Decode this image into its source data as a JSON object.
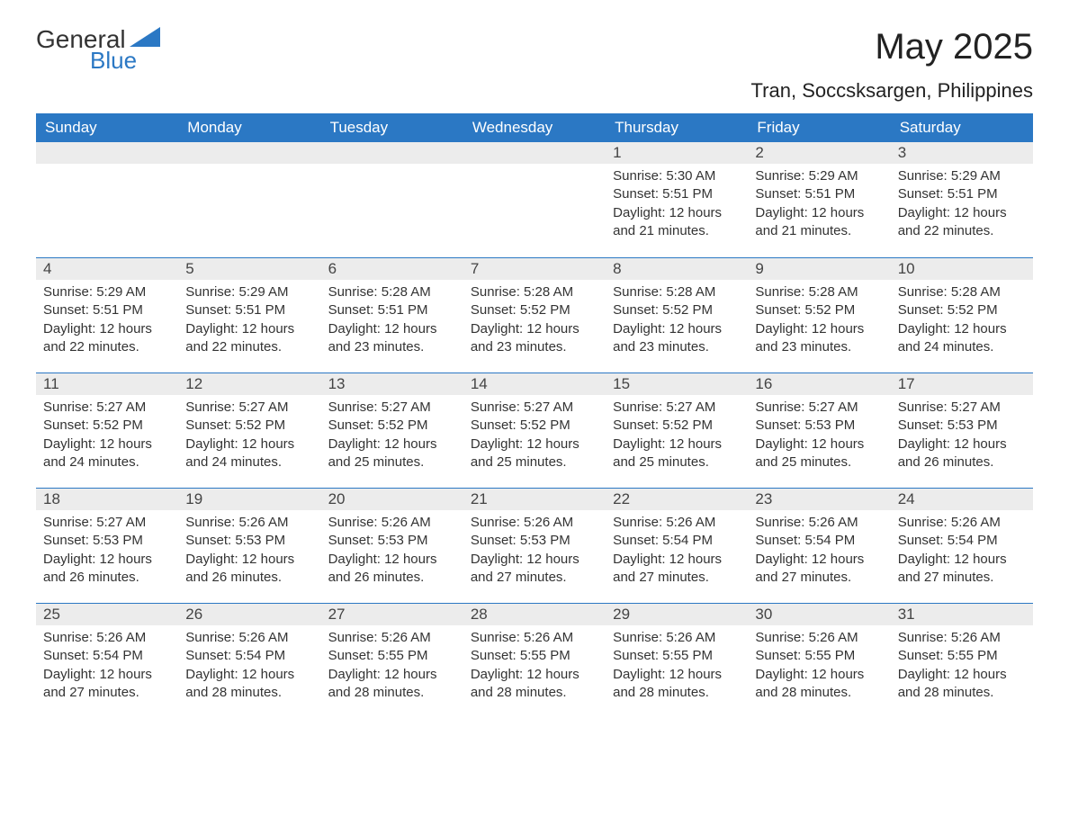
{
  "logo": {
    "line1": "General",
    "line2": "Blue",
    "triangle_color": "#2b78c4"
  },
  "title": "May 2025",
  "location": "Tran, Soccsksargen, Philippines",
  "colors": {
    "header_bg": "#2b78c4",
    "header_text": "#ffffff",
    "daynum_bg": "#ececec",
    "daynum_border": "#2b78c4",
    "text": "#333333",
    "background": "#ffffff"
  },
  "typography": {
    "title_fontsize": 40,
    "subtitle_fontsize": 22,
    "header_fontsize": 17,
    "daynum_fontsize": 17,
    "body_fontsize": 15
  },
  "weekdays": [
    "Sunday",
    "Monday",
    "Tuesday",
    "Wednesday",
    "Thursday",
    "Friday",
    "Saturday"
  ],
  "weeks": [
    [
      null,
      null,
      null,
      null,
      {
        "d": "1",
        "sr": "5:30 AM",
        "ss": "5:51 PM",
        "dl": "12 hours and 21 minutes."
      },
      {
        "d": "2",
        "sr": "5:29 AM",
        "ss": "5:51 PM",
        "dl": "12 hours and 21 minutes."
      },
      {
        "d": "3",
        "sr": "5:29 AM",
        "ss": "5:51 PM",
        "dl": "12 hours and 22 minutes."
      }
    ],
    [
      {
        "d": "4",
        "sr": "5:29 AM",
        "ss": "5:51 PM",
        "dl": "12 hours and 22 minutes."
      },
      {
        "d": "5",
        "sr": "5:29 AM",
        "ss": "5:51 PM",
        "dl": "12 hours and 22 minutes."
      },
      {
        "d": "6",
        "sr": "5:28 AM",
        "ss": "5:51 PM",
        "dl": "12 hours and 23 minutes."
      },
      {
        "d": "7",
        "sr": "5:28 AM",
        "ss": "5:52 PM",
        "dl": "12 hours and 23 minutes."
      },
      {
        "d": "8",
        "sr": "5:28 AM",
        "ss": "5:52 PM",
        "dl": "12 hours and 23 minutes."
      },
      {
        "d": "9",
        "sr": "5:28 AM",
        "ss": "5:52 PM",
        "dl": "12 hours and 23 minutes."
      },
      {
        "d": "10",
        "sr": "5:28 AM",
        "ss": "5:52 PM",
        "dl": "12 hours and 24 minutes."
      }
    ],
    [
      {
        "d": "11",
        "sr": "5:27 AM",
        "ss": "5:52 PM",
        "dl": "12 hours and 24 minutes."
      },
      {
        "d": "12",
        "sr": "5:27 AM",
        "ss": "5:52 PM",
        "dl": "12 hours and 24 minutes."
      },
      {
        "d": "13",
        "sr": "5:27 AM",
        "ss": "5:52 PM",
        "dl": "12 hours and 25 minutes."
      },
      {
        "d": "14",
        "sr": "5:27 AM",
        "ss": "5:52 PM",
        "dl": "12 hours and 25 minutes."
      },
      {
        "d": "15",
        "sr": "5:27 AM",
        "ss": "5:52 PM",
        "dl": "12 hours and 25 minutes."
      },
      {
        "d": "16",
        "sr": "5:27 AM",
        "ss": "5:53 PM",
        "dl": "12 hours and 25 minutes."
      },
      {
        "d": "17",
        "sr": "5:27 AM",
        "ss": "5:53 PM",
        "dl": "12 hours and 26 minutes."
      }
    ],
    [
      {
        "d": "18",
        "sr": "5:27 AM",
        "ss": "5:53 PM",
        "dl": "12 hours and 26 minutes."
      },
      {
        "d": "19",
        "sr": "5:26 AM",
        "ss": "5:53 PM",
        "dl": "12 hours and 26 minutes."
      },
      {
        "d": "20",
        "sr": "5:26 AM",
        "ss": "5:53 PM",
        "dl": "12 hours and 26 minutes."
      },
      {
        "d": "21",
        "sr": "5:26 AM",
        "ss": "5:53 PM",
        "dl": "12 hours and 27 minutes."
      },
      {
        "d": "22",
        "sr": "5:26 AM",
        "ss": "5:54 PM",
        "dl": "12 hours and 27 minutes."
      },
      {
        "d": "23",
        "sr": "5:26 AM",
        "ss": "5:54 PM",
        "dl": "12 hours and 27 minutes."
      },
      {
        "d": "24",
        "sr": "5:26 AM",
        "ss": "5:54 PM",
        "dl": "12 hours and 27 minutes."
      }
    ],
    [
      {
        "d": "25",
        "sr": "5:26 AM",
        "ss": "5:54 PM",
        "dl": "12 hours and 27 minutes."
      },
      {
        "d": "26",
        "sr": "5:26 AM",
        "ss": "5:54 PM",
        "dl": "12 hours and 28 minutes."
      },
      {
        "d": "27",
        "sr": "5:26 AM",
        "ss": "5:55 PM",
        "dl": "12 hours and 28 minutes."
      },
      {
        "d": "28",
        "sr": "5:26 AM",
        "ss": "5:55 PM",
        "dl": "12 hours and 28 minutes."
      },
      {
        "d": "29",
        "sr": "5:26 AM",
        "ss": "5:55 PM",
        "dl": "12 hours and 28 minutes."
      },
      {
        "d": "30",
        "sr": "5:26 AM",
        "ss": "5:55 PM",
        "dl": "12 hours and 28 minutes."
      },
      {
        "d": "31",
        "sr": "5:26 AM",
        "ss": "5:55 PM",
        "dl": "12 hours and 28 minutes."
      }
    ]
  ],
  "labels": {
    "sunrise": "Sunrise: ",
    "sunset": "Sunset: ",
    "daylight": "Daylight: "
  }
}
